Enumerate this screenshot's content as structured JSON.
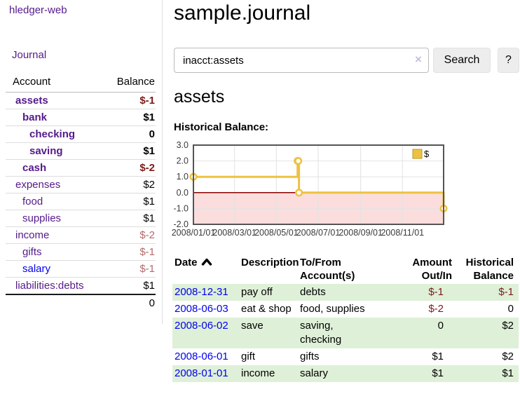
{
  "app": {
    "title": "hledger-web"
  },
  "colors": {
    "link_visited": "#551a8b",
    "link_unvisited": "#0000ee",
    "negative_strong": "#7d1a1a",
    "negative_soft": "#b36b6b",
    "row_stripe_green": "#dff0d8"
  },
  "sidebar": {
    "journal_link": "Journal",
    "accounts": {
      "headers": {
        "account": "Account",
        "balance": "Balance"
      },
      "rows": [
        {
          "label": "assets",
          "amount": "$-1",
          "level": 0,
          "bold": true,
          "link": "visited",
          "amount_class": "neg-strong"
        },
        {
          "label": "bank",
          "amount": "$1",
          "level": 1,
          "bold": true,
          "link": "visited",
          "amount_class": "pos"
        },
        {
          "label": "checking",
          "amount": "0",
          "level": 2,
          "bold": true,
          "link": "visited",
          "amount_class": "pos"
        },
        {
          "label": "saving",
          "amount": "$1",
          "level": 2,
          "bold": true,
          "link": "visited",
          "amount_class": "pos"
        },
        {
          "label": "cash",
          "amount": "$-2",
          "level": 1,
          "bold": true,
          "link": "visited",
          "amount_class": "neg-strong"
        },
        {
          "label": "expenses",
          "amount": "$2",
          "level": 0,
          "bold": false,
          "link": "visited",
          "amount_class": "pos"
        },
        {
          "label": "food",
          "amount": "$1",
          "level": 1,
          "bold": false,
          "link": "visited",
          "amount_class": "pos"
        },
        {
          "label": "supplies",
          "amount": "$1",
          "level": 1,
          "bold": false,
          "link": "visited",
          "amount_class": "pos"
        },
        {
          "label": "income",
          "amount": "$-2",
          "level": 0,
          "bold": false,
          "link": "visited",
          "amount_class": "neg-soft"
        },
        {
          "label": "gifts",
          "amount": "$-1",
          "level": 1,
          "bold": false,
          "link": "visited",
          "amount_class": "neg-soft"
        },
        {
          "label": "salary",
          "amount": "$-1",
          "level": 1,
          "bold": false,
          "link": "unvisited",
          "amount_class": "neg-soft"
        },
        {
          "label": "liabilities:debts",
          "amount": "$1",
          "level": 0,
          "bold": false,
          "link": "visited",
          "amount_class": "pos"
        }
      ],
      "total": "0"
    }
  },
  "main": {
    "title": "sample.journal",
    "search": {
      "value": "inacct:assets",
      "clear_icon": "×",
      "search_button": "Search",
      "help_button": "?"
    },
    "account_heading": "assets",
    "chart_label": "Historical Balance:"
  },
  "chart_data": {
    "type": "line",
    "title": "Historical Balance",
    "step": true,
    "series": [
      {
        "name": "$",
        "points": [
          [
            "2008-01-01",
            1
          ],
          [
            "2008-06-01",
            2
          ],
          [
            "2008-06-02",
            2
          ],
          [
            "2008-06-03",
            0
          ],
          [
            "2008-12-31",
            -1
          ]
        ]
      }
    ],
    "x_range": [
      "2008-01-01",
      "2008-12-31"
    ],
    "ylim": [
      -2,
      3
    ],
    "x_ticks": [
      {
        "value": "2008-01-01",
        "label": "2008/01/01"
      },
      {
        "value": "2008-03-01",
        "label": "2008/03/01"
      },
      {
        "value": "2008-05-01",
        "label": "2008/05/01"
      },
      {
        "value": "2008-07-01",
        "label": "2008/07/01"
      },
      {
        "value": "2008-09-01",
        "label": "2008/09/01"
      },
      {
        "value": "2008-11-01",
        "label": "2008/11/01"
      }
    ],
    "y_ticks": [
      {
        "value": 3,
        "label": "3.0"
      },
      {
        "value": 2,
        "label": "2.0"
      },
      {
        "value": 1,
        "label": "1.0"
      },
      {
        "value": 0,
        "label": "0.0"
      },
      {
        "value": -1,
        "label": "-1.0"
      },
      {
        "value": -2,
        "label": "-2.0"
      }
    ],
    "legend": {
      "position": "top-right",
      "label": "$",
      "swatch_color": "#edc240"
    },
    "grid": true,
    "colors": {
      "line": "#edc240",
      "marker_fill": "#ffffff",
      "negative_region": "#fbdddd",
      "zero_line": "#8b0000",
      "border": "#545454",
      "grid": "#e2e2e2"
    }
  },
  "register": {
    "headers": {
      "date": "Date",
      "description": "Description",
      "to_from": "To/From Account(s)",
      "amount": "Amount Out/In",
      "balance": "Historical Balance"
    },
    "sort": "ascending",
    "rows": [
      {
        "date": "2008-12-31",
        "description": "pay off",
        "to_from": "debts",
        "amount": "$-1",
        "amount_class": "neg-strong",
        "balance": "$-1",
        "balance_class": "neg-strong",
        "stripe": true
      },
      {
        "date": "2008-06-03",
        "description": "eat & shop",
        "to_from": "food, supplies",
        "amount": "$-2",
        "amount_class": "neg-strong",
        "balance": "0",
        "balance_class": "pos",
        "stripe": false
      },
      {
        "date": "2008-06-02",
        "description": "save",
        "to_from": "saving,\nchecking",
        "amount": "0",
        "amount_class": "pos",
        "balance": "$2",
        "balance_class": "pos",
        "stripe": true
      },
      {
        "date": "2008-06-01",
        "description": "gift",
        "to_from": "gifts",
        "amount": "$1",
        "amount_class": "pos",
        "balance": "$2",
        "balance_class": "pos",
        "stripe": false
      },
      {
        "date": "2008-01-01",
        "description": "income",
        "to_from": "salary",
        "amount": "$1",
        "amount_class": "pos",
        "balance": "$1",
        "balance_class": "pos",
        "stripe": true
      }
    ]
  }
}
